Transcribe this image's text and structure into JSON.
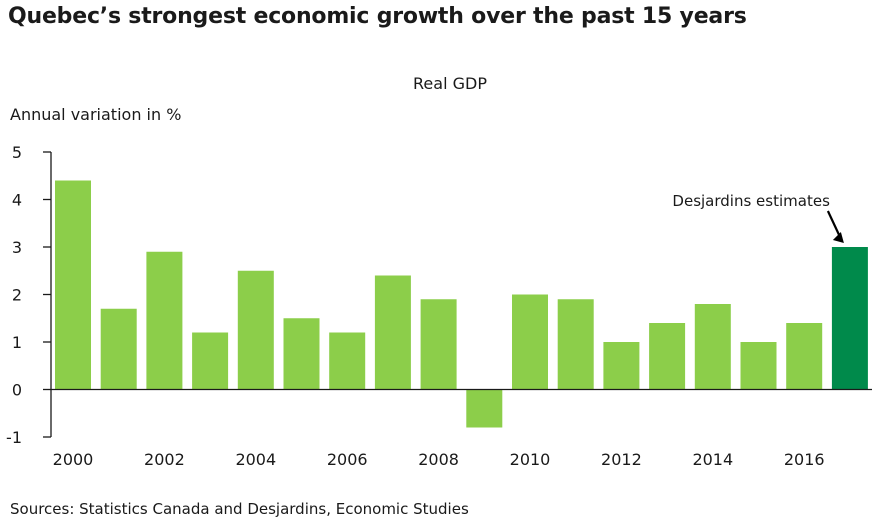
{
  "chart_data": {
    "type": "bar",
    "title": "Quebec’s strongest economic growth over the past 15 years",
    "subtitle": "Real GDP",
    "xlabel": "",
    "ylabel": "Annual variation in %",
    "categories": [
      "2000",
      "2001",
      "2002",
      "2003",
      "2004",
      "2005",
      "2006",
      "2007",
      "2008",
      "2009",
      "2010",
      "2011",
      "2012",
      "2013",
      "2014",
      "2015",
      "2016",
      "2017"
    ],
    "values": [
      4.4,
      1.7,
      2.9,
      1.2,
      2.5,
      1.5,
      1.2,
      2.4,
      1.9,
      -0.8,
      2.0,
      1.9,
      1.0,
      1.4,
      1.8,
      1.0,
      1.4,
      3.0
    ],
    "estimate_flags": [
      false,
      false,
      false,
      false,
      false,
      false,
      false,
      false,
      false,
      false,
      false,
      false,
      false,
      false,
      false,
      false,
      false,
      true
    ],
    "x_tick_labels": [
      "2000",
      "2002",
      "2004",
      "2006",
      "2008",
      "2010",
      "2012",
      "2014",
      "2016"
    ],
    "y_ticks": [
      -1,
      0,
      1,
      2,
      3,
      4,
      5
    ],
    "ylim": [
      -1,
      5
    ],
    "grid": false,
    "legend": null,
    "annotations": [
      {
        "text": "Desjardins estimates",
        "target_category": "2017",
        "arrow": true
      }
    ],
    "colors": {
      "actual": "#8cce4a",
      "estimate": "#008a4b",
      "axis": "#1a1a1a"
    },
    "source": "Sources: Statistics Canada and Desjardins, Economic Studies"
  }
}
